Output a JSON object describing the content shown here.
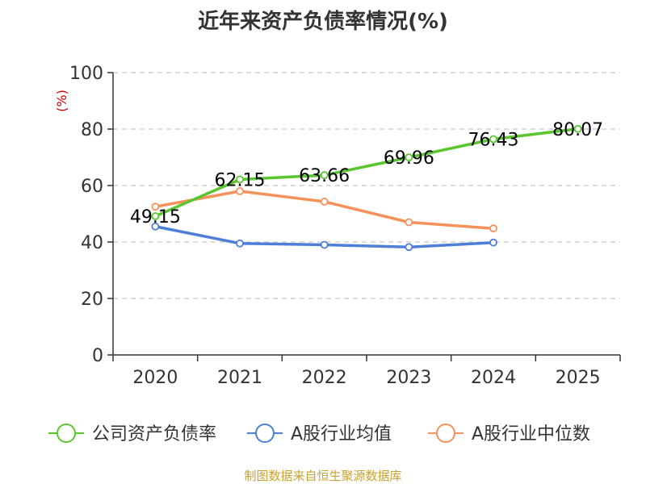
{
  "chart_data": {
    "type": "line",
    "title": "近年来资产负债率情况(%)",
    "ylabel": "(%)",
    "xlabel": "",
    "categories": [
      "2020",
      "2021",
      "2022",
      "2023",
      "2024",
      "2025"
    ],
    "ylim": [
      0,
      100
    ],
    "yticks": [
      0,
      20,
      40,
      60,
      80,
      100
    ],
    "grid": true,
    "legend_position": "bottom",
    "series": [
      {
        "name": "公司资产负债率",
        "color": "#5ac62e",
        "values": [
          49.15,
          62.15,
          63.66,
          69.96,
          76.43,
          80.07
        ],
        "labels": [
          "49.15",
          "62.15",
          "63.66",
          "69.96",
          "76.43",
          "80.07"
        ]
      },
      {
        "name": "A股行业均值",
        "color": "#4d7fd9",
        "values": [
          45.5,
          39.5,
          39.0,
          38.2,
          39.8,
          null
        ]
      },
      {
        "name": "A股行业中位数",
        "color": "#f5915a",
        "values": [
          52.5,
          58.0,
          54.3,
          47.0,
          44.8,
          null
        ]
      }
    ]
  },
  "source": "制图数据来自恒生聚源数据库"
}
